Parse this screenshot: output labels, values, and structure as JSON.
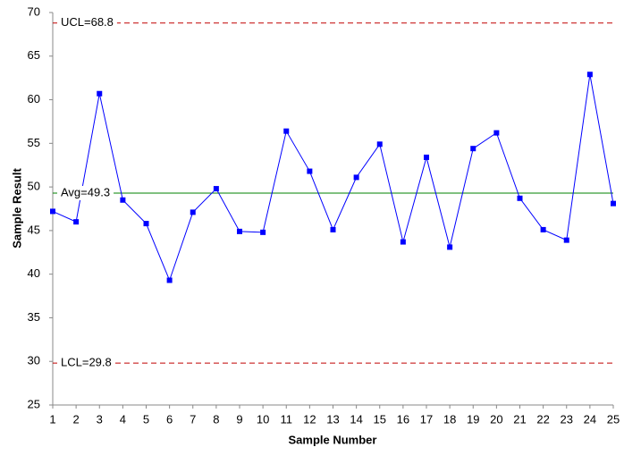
{
  "chart_data": {
    "type": "line",
    "x_label": "Sample Number",
    "y_label": "Sample Result",
    "x": [
      1,
      2,
      3,
      4,
      5,
      6,
      7,
      8,
      9,
      10,
      11,
      12,
      13,
      14,
      15,
      16,
      17,
      18,
      19,
      20,
      21,
      22,
      23,
      24,
      25
    ],
    "series": [
      {
        "name": "Sample Result",
        "color": "#0000ff",
        "values": [
          47.2,
          46.0,
          60.7,
          48.5,
          45.8,
          39.3,
          47.1,
          49.8,
          44.9,
          44.8,
          56.4,
          51.8,
          45.1,
          51.1,
          54.9,
          43.7,
          53.4,
          43.1,
          54.4,
          56.2,
          48.7,
          45.1,
          43.9,
          62.9,
          48.1
        ]
      }
    ],
    "reference_lines": [
      {
        "label": "UCL=68.8",
        "value": 68.8,
        "color": "#c00000",
        "dashed": true
      },
      {
        "label": "Avg=49.3",
        "value": 49.3,
        "color": "#008000",
        "dashed": false
      },
      {
        "label": "LCL=29.8",
        "value": 29.8,
        "color": "#c00000",
        "dashed": true
      }
    ],
    "xlim": [
      1,
      25
    ],
    "xticks": [
      1,
      2,
      3,
      4,
      5,
      6,
      7,
      8,
      9,
      10,
      11,
      12,
      13,
      14,
      15,
      16,
      17,
      18,
      19,
      20,
      21,
      22,
      23,
      24,
      25
    ],
    "ylim": [
      25,
      70
    ],
    "yticks": [
      25,
      30,
      35,
      40,
      45,
      50,
      55,
      60,
      65,
      70
    ],
    "grid": false
  }
}
